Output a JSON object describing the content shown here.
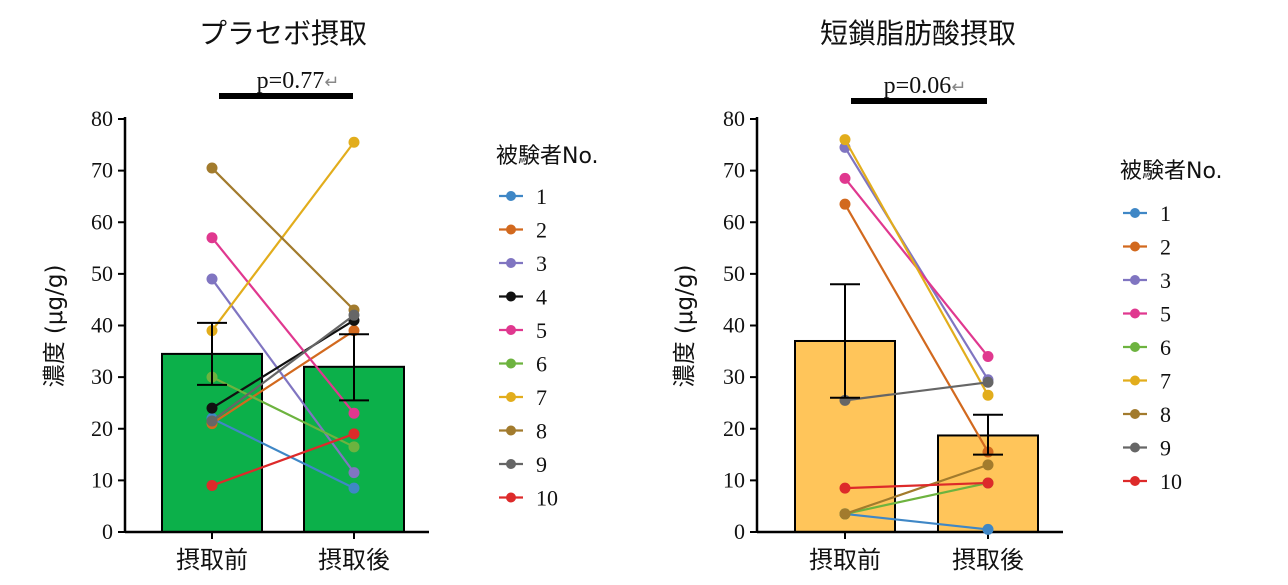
{
  "chart_data": [
    {
      "type": "bar",
      "title": "プラセボ摂取",
      "annotation": "p=0.77",
      "annotation_mark": "↵",
      "ylabel": "濃度 (μg/g)",
      "ylim": [
        0,
        80
      ],
      "yticks": [
        "0",
        "10",
        "20",
        "30",
        "40",
        "50",
        "60",
        "70",
        "80"
      ],
      "categories": [
        "摂取前",
        "摂取後"
      ],
      "bar_color": "#0cb04a",
      "bars": [
        {
          "value": 34.5,
          "err_low": 28.5,
          "err_high": 40.5
        },
        {
          "value": 32.0,
          "err_low": 25.5,
          "err_high": 38.3
        }
      ],
      "legend_title": "被験者No.",
      "series": [
        {
          "name": "1",
          "color": "#3f87c6",
          "values": [
            22.0,
            8.5
          ]
        },
        {
          "name": "2",
          "color": "#d2691e",
          "values": [
            21.0,
            39.0
          ]
        },
        {
          "name": "3",
          "color": "#8075c1",
          "values": [
            49.0,
            11.5
          ]
        },
        {
          "name": "4",
          "color": "#111111",
          "values": [
            24.0,
            41.0
          ]
        },
        {
          "name": "5",
          "color": "#e0388f",
          "values": [
            57.0,
            23.0
          ]
        },
        {
          "name": "6",
          "color": "#6db33f",
          "values": [
            30.0,
            16.5
          ]
        },
        {
          "name": "7",
          "color": "#e2ad1c",
          "values": [
            39.0,
            75.5
          ]
        },
        {
          "name": "8",
          "color": "#a27b2d",
          "values": [
            70.5,
            43.0
          ]
        },
        {
          "name": "9",
          "color": "#666666",
          "values": [
            21.5,
            42.0
          ]
        },
        {
          "name": "10",
          "color": "#dd2a2a",
          "values": [
            9.0,
            19.0
          ]
        }
      ]
    },
    {
      "type": "bar",
      "title": "短鎖脂肪酸摂取",
      "annotation": "p=0.06",
      "annotation_mark": "↵",
      "ylabel": "濃度 (μg/g)",
      "ylim": [
        0,
        80
      ],
      "yticks": [
        "0",
        "10",
        "20",
        "30",
        "40",
        "50",
        "60",
        "70",
        "80"
      ],
      "categories": [
        "摂取前",
        "摂取後"
      ],
      "bar_color": "#ffc55a",
      "bars": [
        {
          "value": 37.0,
          "err_low": 26.0,
          "err_high": 48.0
        },
        {
          "value": 18.7,
          "err_low": 15.0,
          "err_high": 22.7
        }
      ],
      "legend_title": "被験者No.",
      "series": [
        {
          "name": "1",
          "color": "#3f87c6",
          "values": [
            3.5,
            0.5
          ]
        },
        {
          "name": "2",
          "color": "#d2691e",
          "values": [
            63.5,
            15.5
          ]
        },
        {
          "name": "3",
          "color": "#8075c1",
          "values": [
            74.5,
            29.5
          ]
        },
        {
          "name": "5",
          "color": "#e0388f",
          "values": [
            68.5,
            34.0
          ]
        },
        {
          "name": "6",
          "color": "#6db33f",
          "values": [
            3.5,
            9.5
          ]
        },
        {
          "name": "7",
          "color": "#e2ad1c",
          "values": [
            76.0,
            26.5
          ]
        },
        {
          "name": "8",
          "color": "#a27b2d",
          "values": [
            3.5,
            13.0
          ]
        },
        {
          "name": "9",
          "color": "#666666",
          "values": [
            25.5,
            29.0
          ]
        },
        {
          "name": "10",
          "color": "#dd2a2a",
          "values": [
            8.5,
            9.5
          ]
        }
      ]
    }
  ]
}
